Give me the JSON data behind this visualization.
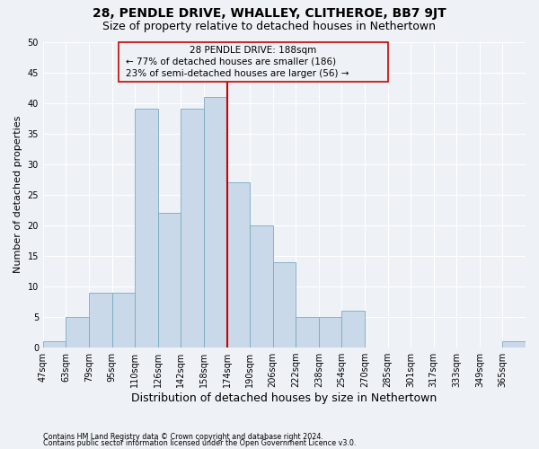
{
  "title": "28, PENDLE DRIVE, WHALLEY, CLITHEROE, BB7 9JT",
  "subtitle": "Size of property relative to detached houses in Nethertown",
  "xlabel": "Distribution of detached houses by size in Nethertown",
  "ylabel": "Number of detached properties",
  "footnote1": "Contains HM Land Registry data © Crown copyright and database right 2024.",
  "footnote2": "Contains public sector information licensed under the Open Government Licence v3.0.",
  "bin_labels": [
    "47sqm",
    "63sqm",
    "79sqm",
    "95sqm",
    "110sqm",
    "126sqm",
    "142sqm",
    "158sqm",
    "174sqm",
    "190sqm",
    "206sqm",
    "222sqm",
    "238sqm",
    "254sqm",
    "270sqm",
    "285sqm",
    "301sqm",
    "317sqm",
    "333sqm",
    "349sqm",
    "365sqm"
  ],
  "bar_heights": [
    1,
    5,
    9,
    9,
    39,
    22,
    39,
    41,
    27,
    20,
    14,
    5,
    5,
    6,
    0,
    0,
    0,
    0,
    0,
    0,
    1
  ],
  "bar_color": "#c9d9ea",
  "bar_edge_color": "#7aaabf",
  "ylim": [
    0,
    50
  ],
  "yticks": [
    0,
    5,
    10,
    15,
    20,
    25,
    30,
    35,
    40,
    45,
    50
  ],
  "vline_bin_index": 8,
  "annotation_title": "28 PENDLE DRIVE: 188sqm",
  "annotation_line1": "← 77% of detached houses are smaller (186)",
  "annotation_line2": "23% of semi-detached houses are larger (56) →",
  "annotation_color": "#cc0000",
  "vline_color": "#cc0000",
  "background_color": "#eef2f7",
  "grid_color": "#ffffff",
  "title_fontsize": 10,
  "subtitle_fontsize": 9,
  "annotation_fontsize": 7.5,
  "ylabel_fontsize": 8,
  "xlabel_fontsize": 9,
  "tick_fontsize": 7,
  "footnote_fontsize": 5.8
}
